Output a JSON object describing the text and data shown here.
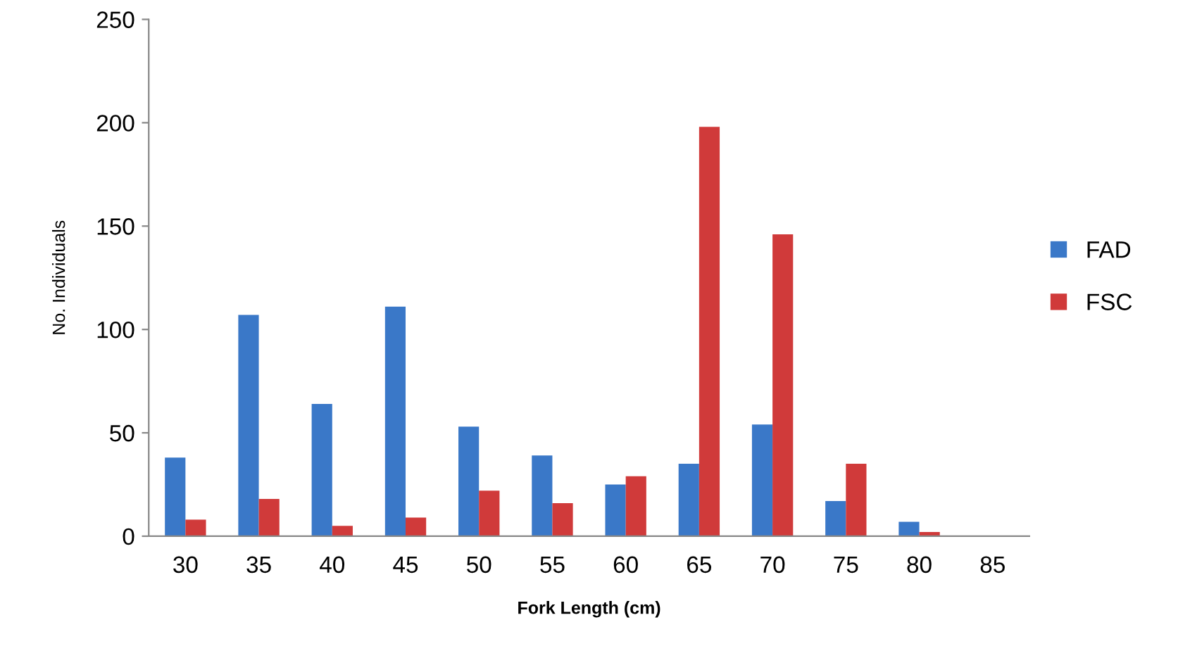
{
  "chart_data": {
    "type": "bar",
    "xlabel": "Fork Length (cm)",
    "ylabel": "No. Individuals",
    "categories": [
      "30",
      "35",
      "40",
      "45",
      "50",
      "55",
      "60",
      "65",
      "70",
      "75",
      "80",
      "85"
    ],
    "series": [
      {
        "name": "FAD",
        "color": "#3a78c8",
        "values": [
          38,
          107,
          64,
          111,
          53,
          39,
          25,
          35,
          54,
          17,
          7,
          0
        ]
      },
      {
        "name": "FSC",
        "color": "#d03a3a",
        "values": [
          8,
          18,
          5,
          9,
          22,
          16,
          29,
          198,
          146,
          35,
          2,
          0
        ]
      }
    ],
    "ylim": [
      0,
      250
    ],
    "yticks": [
      0,
      50,
      100,
      150,
      200,
      250
    ],
    "grid": false,
    "legend": "right"
  }
}
